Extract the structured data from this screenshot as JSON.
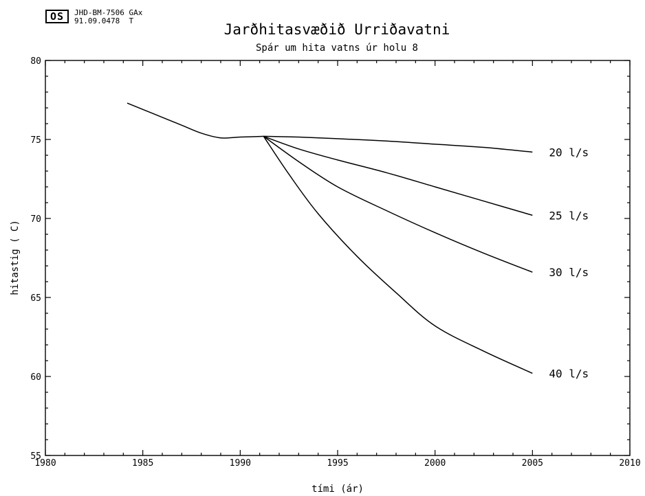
{
  "header": {
    "logo": "OS",
    "code_line1": "JHD-BM-7506 GAx",
    "code_line2": "91.09.0478  T"
  },
  "chart_data": {
    "type": "line",
    "title": "Jarðhitasvæðið Urriðavatni",
    "subtitle": "Spár um hita vatns úr holu 8",
    "xlabel": "tími  (ár)",
    "ylabel": "hitastig ( C)",
    "xlim": [
      1980,
      2010
    ],
    "ylim": [
      55,
      80
    ],
    "xticks": [
      1980,
      1985,
      1990,
      1995,
      2000,
      2005,
      2010
    ],
    "yticks": [
      55,
      60,
      65,
      70,
      75,
      80
    ],
    "grid": false,
    "series": [
      {
        "name": "history",
        "x": [
          1984.2,
          1985.0,
          1986.0,
          1987.0,
          1988.0,
          1989.0,
          1990.0,
          1991.2
        ],
        "y": [
          77.3,
          76.9,
          76.4,
          75.9,
          75.4,
          75.1,
          75.15,
          75.2
        ]
      },
      {
        "name": "20 l/s",
        "label": "20 l/s",
        "x": [
          1991.2,
          1993.0,
          1995.0,
          1997.5,
          2000.0,
          2002.5,
          2005.0
        ],
        "y": [
          75.2,
          75.15,
          75.05,
          74.9,
          74.7,
          74.5,
          74.2
        ]
      },
      {
        "name": "25 l/s",
        "label": "25 l/s",
        "x": [
          1991.2,
          1993.0,
          1995.0,
          1997.5,
          2000.0,
          2002.5,
          2005.0
        ],
        "y": [
          75.2,
          74.4,
          73.7,
          72.9,
          72.0,
          71.1,
          70.2
        ]
      },
      {
        "name": "30 l/s",
        "label": "30 l/s",
        "x": [
          1991.2,
          1993.0,
          1995.0,
          1997.5,
          2000.0,
          2002.5,
          2005.0
        ],
        "y": [
          75.2,
          73.6,
          72.0,
          70.5,
          69.1,
          67.8,
          66.6
        ]
      },
      {
        "name": "40 l/s",
        "label": "40 l/s",
        "x": [
          1991.2,
          1992.5,
          1994.0,
          1996.0,
          1998.0,
          2000.0,
          2002.5,
          2005.0
        ],
        "y": [
          75.2,
          72.8,
          70.3,
          67.6,
          65.3,
          63.2,
          61.6,
          60.2
        ]
      }
    ]
  }
}
